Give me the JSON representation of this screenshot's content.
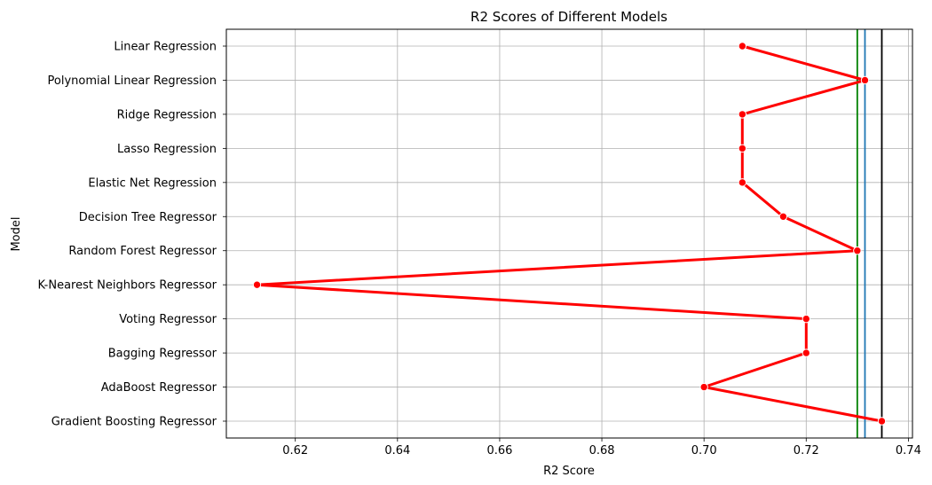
{
  "chart_data": {
    "type": "line",
    "title": "R2 Scores of Different Models",
    "xlabel": "R2 Score",
    "ylabel": "Model",
    "xlim": [
      0.6065,
      0.7408
    ],
    "xticks": [
      0.62,
      0.64,
      0.66,
      0.68,
      0.7,
      0.72,
      0.74
    ],
    "xtick_labels": [
      "0.62",
      "0.64",
      "0.66",
      "0.68",
      "0.70",
      "0.72",
      "0.74"
    ],
    "grid": true,
    "legend": "none",
    "categories": [
      "Linear Regression",
      "Polynomial Linear Regression",
      "Ridge Regression",
      "Lasso Regression",
      "Elastic Net Regression",
      "Decision Tree Regressor",
      "Random Forest Regressor",
      "K-Nearest Neighbors Regressor",
      "Voting Regressor",
      "Bagging Regressor",
      "AdaBoost Regressor",
      "Gradient Boosting Regressor"
    ],
    "series": [
      {
        "values": [
          0.7075,
          0.7315,
          0.7075,
          0.7075,
          0.7075,
          0.7155,
          0.73,
          0.6125,
          0.72,
          0.72,
          0.7,
          0.7348
        ],
        "color": "#ff0000"
      }
    ],
    "reference_lines": [
      {
        "x": 0.73,
        "color": "#008000"
      },
      {
        "x": 0.7315,
        "color": "#1f77b4"
      },
      {
        "x": 0.7348,
        "color": "#000000"
      }
    ]
  }
}
